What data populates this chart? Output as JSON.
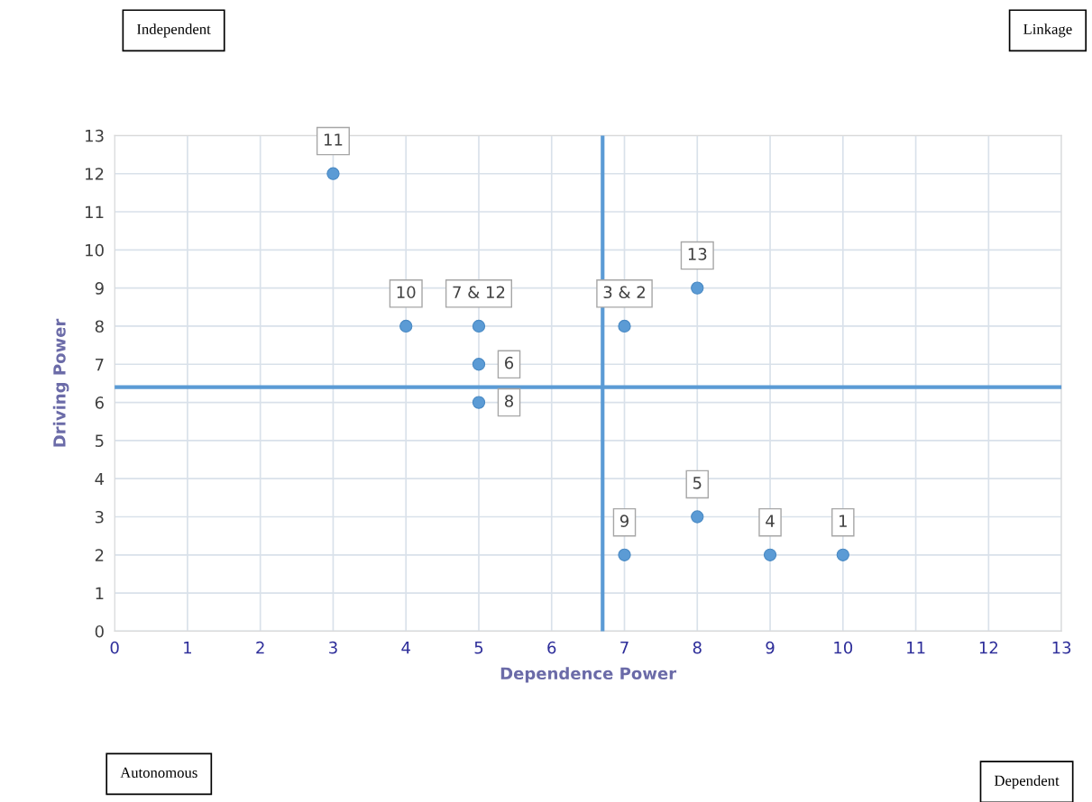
{
  "chart_data": {
    "type": "scatter",
    "xlabel": "Dependence Power",
    "ylabel": "Driving Power",
    "x": [
      10,
      9,
      8,
      7,
      8,
      7,
      5,
      5,
      5,
      4,
      3
    ],
    "series": [
      {
        "color": "#5b9bd5",
        "values": [
          2,
          2,
          3,
          2,
          9,
          8,
          8,
          7,
          6,
          8,
          12
        ]
      }
    ],
    "marker": "circle",
    "xlim": [
      0,
      13
    ],
    "ylim": [
      0,
      13
    ],
    "xticks": [
      0,
      1,
      2,
      3,
      4,
      5,
      6,
      7,
      8,
      9,
      10,
      11,
      12,
      13
    ],
    "yticks": [
      0,
      1,
      2,
      3,
      4,
      5,
      6,
      7,
      8,
      9,
      10,
      11,
      12,
      13
    ],
    "grid": true,
    "ref_lines": [
      {
        "axis": "x",
        "value": 6.7,
        "color": "#5b9bd5"
      },
      {
        "axis": "y",
        "value": 6.4,
        "color": "#5b9bd5"
      }
    ],
    "annotations": [
      {
        "text": "1",
        "x": 10,
        "y": 2
      },
      {
        "text": "4",
        "x": 9,
        "y": 2
      },
      {
        "text": "5",
        "x": 8,
        "y": 3
      },
      {
        "text": "9",
        "x": 7,
        "y": 2
      },
      {
        "text": "13",
        "x": 8,
        "y": 9
      },
      {
        "text": "3 & 2",
        "x": 7,
        "y": 8
      },
      {
        "text": "7 & 12",
        "x": 5,
        "y": 8
      },
      {
        "text": "6",
        "x": 5,
        "y": 7
      },
      {
        "text": "8",
        "x": 5,
        "y": 6
      },
      {
        "text": "10",
        "x": 4,
        "y": 8
      },
      {
        "text": "11",
        "x": 3,
        "y": 12
      },
      "Independent",
      "Linkage",
      "Autonomous",
      "Dependent"
    ]
  }
}
